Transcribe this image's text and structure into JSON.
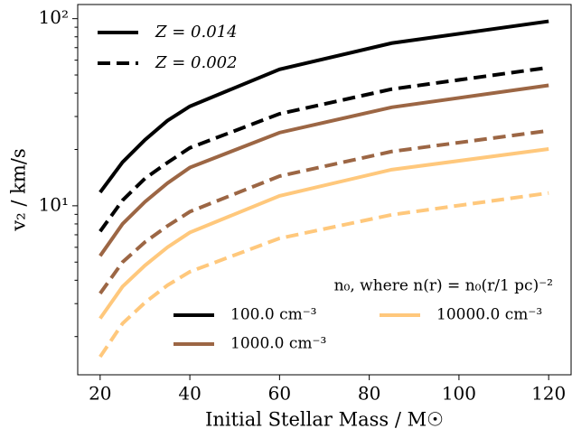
{
  "chart_data": {
    "type": "line",
    "ylog": true,
    "x_label": "Initial Stellar Mass / M☉",
    "y_label": "v₂ / km/s",
    "x": [
      20,
      25,
      30,
      35,
      40,
      60,
      85,
      120
    ],
    "series": [
      {
        "color": "#000000",
        "linestyle": "solid",
        "values": [
          11.8,
          17.1,
          22.5,
          28.5,
          34,
          53.6,
          74,
          96.8
        ]
      },
      {
        "color": "#000000",
        "linestyle": "dashed",
        "values": [
          7.3,
          10.7,
          14,
          17,
          20.4,
          31,
          42,
          54.8
        ]
      },
      {
        "color": "#9c6644",
        "linestyle": "solid",
        "values": [
          5.4,
          8,
          10.5,
          13.2,
          16,
          24.6,
          33.6,
          44
        ]
      },
      {
        "color": "#9c6644",
        "linestyle": "dashed",
        "values": [
          3.4,
          5,
          6.4,
          7.8,
          9.3,
          14.4,
          19.5,
          25.2
        ]
      },
      {
        "color": "#ffc87c",
        "linestyle": "solid",
        "values": [
          2.5,
          3.7,
          4.8,
          6,
          7.2,
          11.3,
          15.6,
          20.1
        ]
      },
      {
        "color": "#ffc87c",
        "linestyle": "dashed",
        "values": [
          1.56,
          2.35,
          3.04,
          3.76,
          4.44,
          6.7,
          8.95,
          11.7
        ]
      }
    ],
    "xlim": [
      15,
      125
    ],
    "xticks": [
      20,
      40,
      60,
      80,
      100,
      120
    ],
    "ylim": [
      1.25,
      119
    ],
    "yticks": [
      {
        "value": 10,
        "label": "10¹"
      },
      {
        "value": 100,
        "label": "10²"
      }
    ],
    "yticks_minor": [
      2,
      3,
      4,
      5,
      6,
      7,
      8,
      9,
      20,
      30,
      40,
      50,
      60,
      70,
      80,
      90
    ],
    "legends": [
      {
        "corner": "upper left",
        "entries": [
          {
            "label": "Z = 0.014",
            "linestyle": "solid",
            "color": "#000000"
          },
          {
            "label": "Z = 0.002",
            "linestyle": "dashed",
            "color": "#000000"
          }
        ]
      },
      {
        "corner": "lower right",
        "title": "n₀, where n(r) = n₀(r/1 pc)⁻²",
        "entries": [
          {
            "label": "100.0 cm⁻³",
            "linestyle": "solid",
            "color": "#000000"
          },
          {
            "label": "1000.0 cm⁻³",
            "linestyle": "solid",
            "color": "#9c6644"
          },
          {
            "label": "10000.0 cm⁻³",
            "linestyle": "solid",
            "color": "#ffc87c"
          }
        ]
      }
    ]
  }
}
